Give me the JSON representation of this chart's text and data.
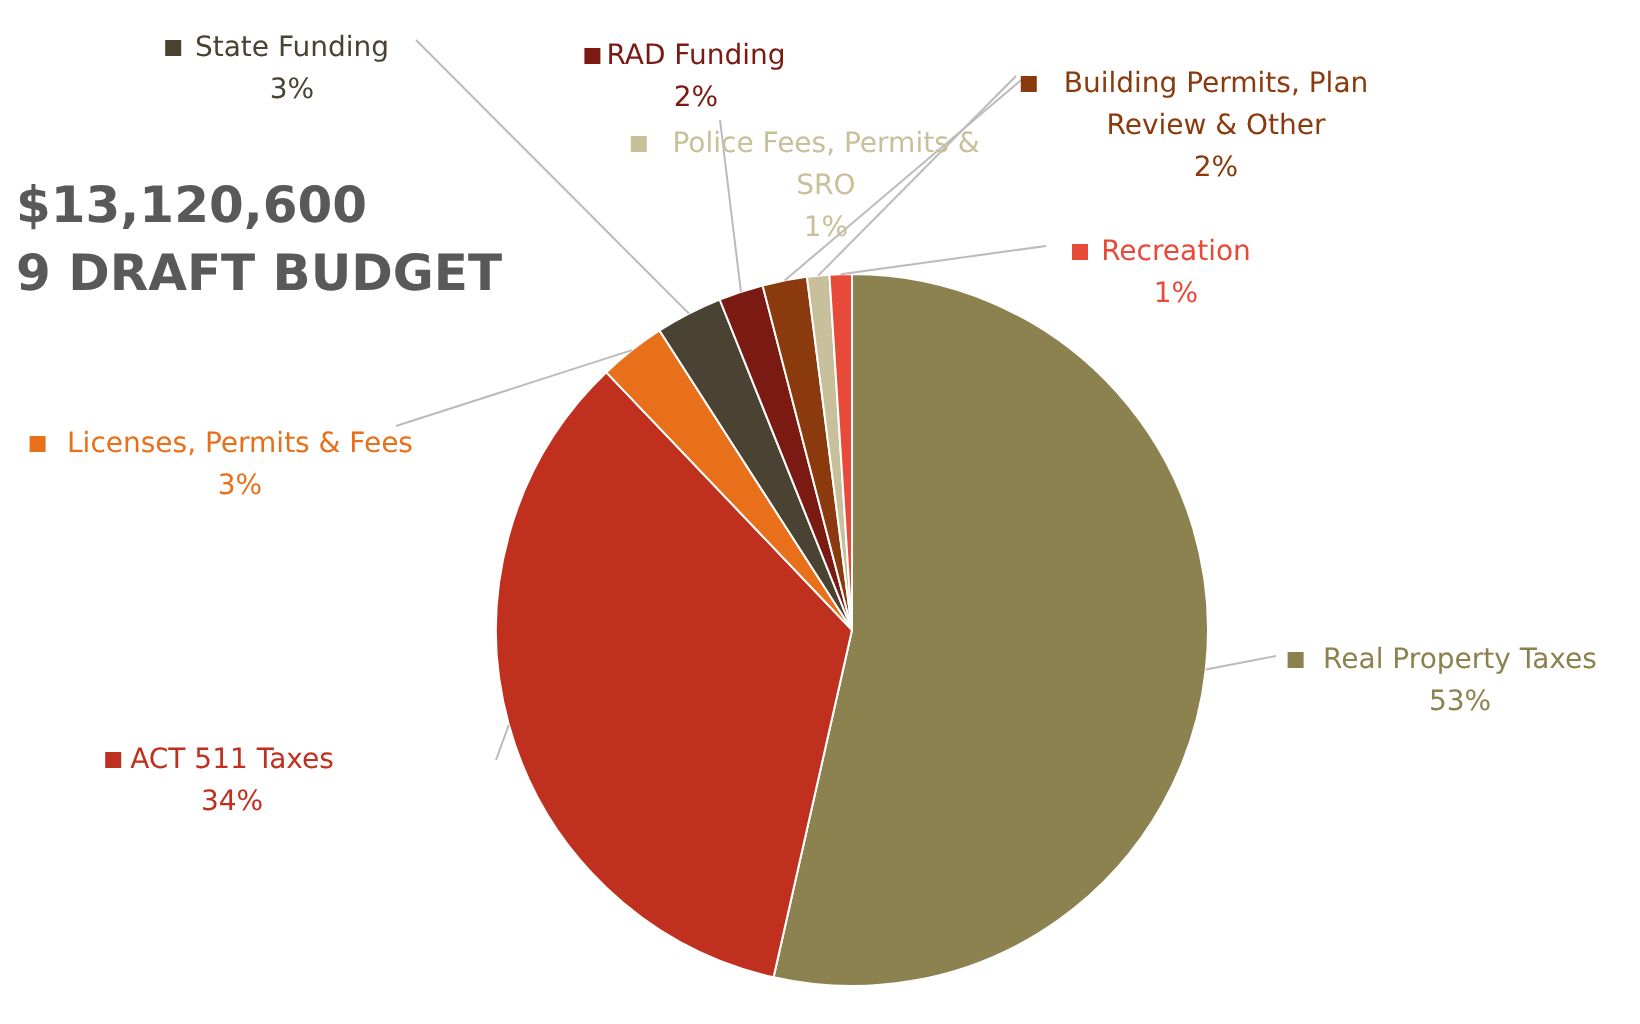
{
  "chart_data": {
    "type": "pie",
    "title": "$13,120,600",
    "subtitle": "9 DRAFT BUDGET",
    "categories": [
      "Real Property Taxes",
      "ACT 511 Taxes",
      "Licenses, Permits & Fees",
      "State Funding",
      "RAD Funding",
      "Building Permits, Plan Review & Other",
      "Police Fees, Permits & SRO",
      "Recreation"
    ],
    "values": [
      53,
      34,
      3,
      3,
      2,
      2,
      1,
      1
    ],
    "colors": [
      "#8c8250",
      "#c0301f",
      "#e8701a",
      "#4a4232",
      "#7a1a12",
      "#8b3a0e",
      "#c8c09a",
      "#e84a3a"
    ],
    "value_labels": [
      "53%",
      "34%",
      "3%",
      "3%",
      "2%",
      "2%",
      "1%",
      "1%"
    ],
    "legend": "top"
  }
}
